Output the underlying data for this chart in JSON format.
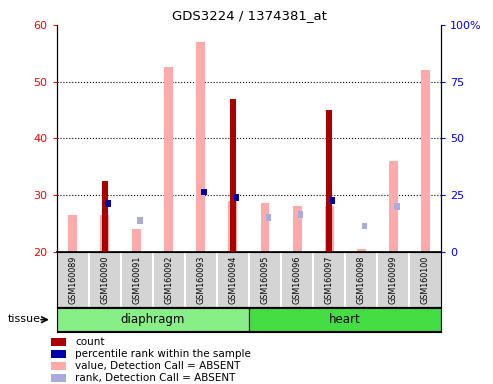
{
  "title": "GDS3224 / 1374381_at",
  "samples": [
    "GSM160089",
    "GSM160090",
    "GSM160091",
    "GSM160092",
    "GSM160093",
    "GSM160094",
    "GSM160095",
    "GSM160096",
    "GSM160097",
    "GSM160098",
    "GSM160099",
    "GSM160100"
  ],
  "count_values": [
    null,
    32.5,
    null,
    null,
    null,
    47.0,
    null,
    null,
    45.0,
    null,
    null,
    null
  ],
  "rank_values": [
    null,
    28.5,
    null,
    null,
    30.5,
    29.5,
    null,
    null,
    29.0,
    null,
    null,
    null
  ],
  "pink_bar_values": [
    26.5,
    26.5,
    24.0,
    52.5,
    57.0,
    29.0,
    28.5,
    28.0,
    28.0,
    20.5,
    36.0,
    52.0
  ],
  "blue_square_values": [
    null,
    null,
    25.5,
    null,
    null,
    null,
    26.0,
    26.5,
    null,
    24.5,
    28.0,
    null
  ],
  "ylim_left": [
    20,
    60
  ],
  "ylim_right": [
    0,
    100
  ],
  "yticks_left": [
    20,
    30,
    40,
    50,
    60
  ],
  "yticks_right": [
    0,
    25,
    50,
    75,
    100
  ],
  "ytick_labels_right": [
    "0",
    "25",
    "50",
    "75",
    "100%"
  ],
  "diaphragm_color": "#88ee88",
  "heart_color": "#44dd44",
  "pink_bar_color": "#ffaaaa",
  "blue_sq_color": "#aaaadd",
  "count_color": "#aa0000",
  "rank_color": "#0000aa",
  "gray_bg": "#d4d4d4"
}
